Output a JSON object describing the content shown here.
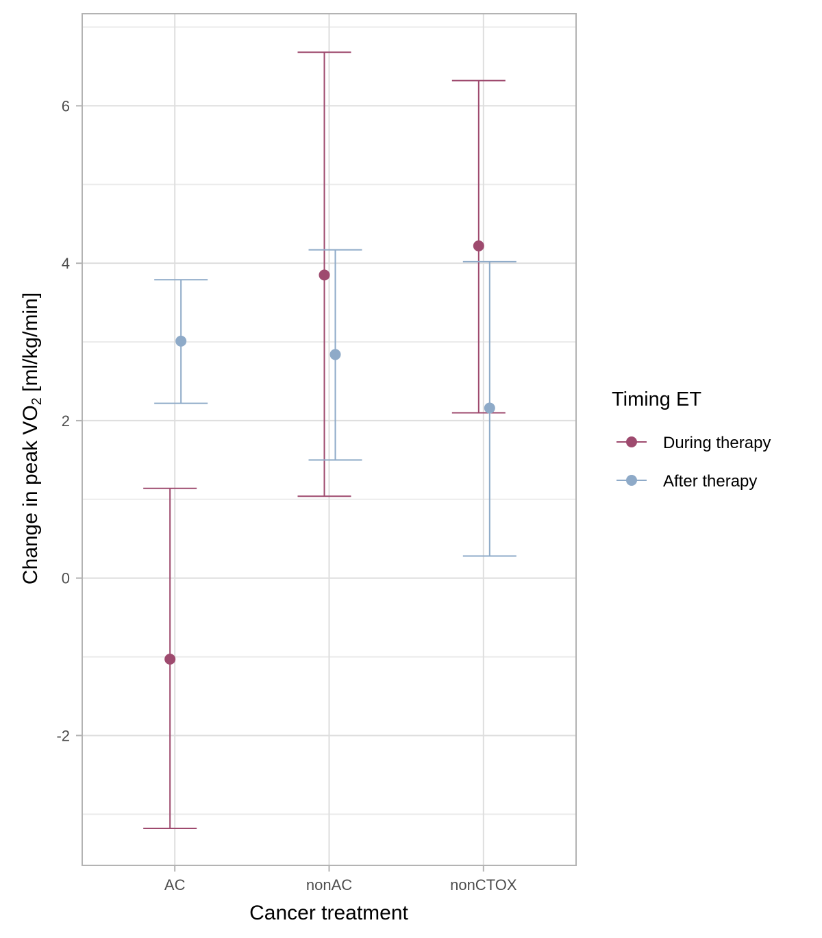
{
  "chart_data": {
    "type": "errorbar",
    "title": "",
    "xlabel": "Cancer treatment",
    "ylabel_main": "Change in peak VO",
    "ylabel_sub": "2",
    "ylabel_tail": " [ml/kg/min]",
    "ylim": [
      -3.65,
      7.17
    ],
    "yticks": [
      -2,
      0,
      2,
      4,
      6
    ],
    "yticks_minor": [
      -3,
      -1,
      1,
      3,
      5,
      7
    ],
    "grid": true,
    "categories": [
      "AC",
      "nonAC",
      "nonCTOX"
    ],
    "legend": {
      "title": "Timing ET",
      "placement": "right"
    },
    "series": [
      {
        "name": "During therapy",
        "color": "#9e4a6e",
        "values": [
          -1.03,
          3.85,
          4.22
        ],
        "lower": [
          -3.18,
          1.04,
          2.1
        ],
        "upper": [
          1.14,
          6.68,
          6.32
        ]
      },
      {
        "name": "After therapy",
        "color": "#8eaac8",
        "values": [
          3.01,
          2.84,
          2.16
        ],
        "lower": [
          2.22,
          1.5,
          0.28
        ],
        "upper": [
          3.79,
          4.17,
          4.02
        ]
      }
    ]
  }
}
